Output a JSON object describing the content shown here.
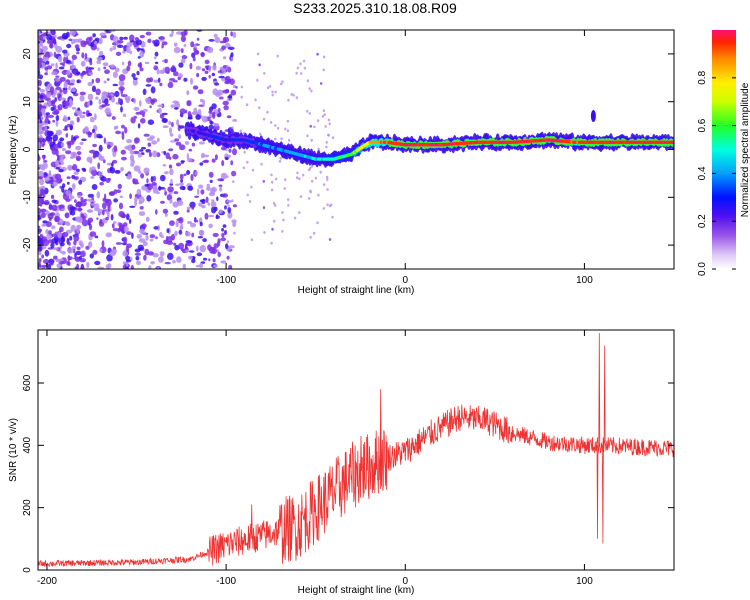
{
  "title": "S233.2025.310.18.08.R09",
  "colors": {
    "snr_line": "#ee3333",
    "axis": "#000000",
    "colormap": [
      "#e6e6fa",
      "#b48cf0",
      "#7a2ee8",
      "#3a10f0",
      "#0033ff",
      "#00aaff",
      "#00ffcc",
      "#33ff33",
      "#ccff00",
      "#ffee00",
      "#ff9900",
      "#ff3300",
      "#ff1177"
    ]
  },
  "chart_data": [
    {
      "type": "heatmap",
      "name": "spectrogram",
      "xlabel": "Height of straight line (km)",
      "ylabel": "Frequency (Hz)",
      "xlim": [
        -205,
        150
      ],
      "ylim": [
        -25,
        25
      ],
      "xticks": [
        -200,
        -100,
        0,
        100
      ],
      "xtick_labels": [
        "-200",
        "-100",
        "0",
        "100"
      ],
      "yticks": [
        -20,
        -10,
        0,
        10,
        20
      ],
      "ytick_labels": [
        "-20",
        "-10",
        "0",
        "10",
        "20"
      ],
      "colorbar": {
        "label": "Normalized spectral amplitude",
        "range": [
          0,
          1
        ],
        "ticks": [
          0.0,
          0.2,
          0.4,
          0.6,
          0.8
        ],
        "tick_labels": [
          "0.0",
          "0.2",
          "0.4",
          "0.6",
          "0.8"
        ]
      },
      "ridge": [
        {
          "x": -120,
          "f": 4,
          "a": 0.22
        },
        {
          "x": -110,
          "f": 3,
          "a": 0.28
        },
        {
          "x": -100,
          "f": 2,
          "a": 0.3
        },
        {
          "x": -90,
          "f": 2,
          "a": 0.32
        },
        {
          "x": -80,
          "f": 1,
          "a": 0.36
        },
        {
          "x": -70,
          "f": 0,
          "a": 0.4
        },
        {
          "x": -60,
          "f": -1,
          "a": 0.42
        },
        {
          "x": -50,
          "f": -2,
          "a": 0.46
        },
        {
          "x": -40,
          "f": -2,
          "a": 0.5
        },
        {
          "x": -30,
          "f": -1,
          "a": 0.6
        },
        {
          "x": -20,
          "f": 1.5,
          "a": 0.8
        },
        {
          "x": -10,
          "f": 1.5,
          "a": 0.9
        },
        {
          "x": 0,
          "f": 1,
          "a": 0.95
        },
        {
          "x": 20,
          "f": 1,
          "a": 0.95
        },
        {
          "x": 40,
          "f": 1.5,
          "a": 0.95
        },
        {
          "x": 60,
          "f": 1.5,
          "a": 0.95
        },
        {
          "x": 80,
          "f": 2,
          "a": 0.95
        },
        {
          "x": 95,
          "f": 1.5,
          "a": 0.9
        },
        {
          "x": 110,
          "f": 1.5,
          "a": 0.95
        },
        {
          "x": 130,
          "f": 1.5,
          "a": 0.95
        },
        {
          "x": 150,
          "f": 1.5,
          "a": 0.95
        }
      ]
    },
    {
      "type": "line",
      "name": "snr",
      "xlabel": "Height of straight line (km)",
      "ylabel": "SNR (10 * v/v)",
      "xlim": [
        -205,
        150
      ],
      "ylim": [
        0,
        770
      ],
      "xticks": [
        -200,
        -100,
        0,
        100
      ],
      "xtick_labels": [
        "-200",
        "-100",
        "0",
        "100"
      ],
      "yticks": [
        0,
        200,
        400,
        600
      ],
      "ytick_labels": [
        "0",
        "200",
        "400",
        "600"
      ],
      "trend": [
        {
          "x": -205,
          "y": 20
        },
        {
          "x": -150,
          "y": 25
        },
        {
          "x": -120,
          "y": 35
        },
        {
          "x": -100,
          "y": 80
        },
        {
          "x": -80,
          "y": 110
        },
        {
          "x": -60,
          "y": 140
        },
        {
          "x": -45,
          "y": 220
        },
        {
          "x": -30,
          "y": 300
        },
        {
          "x": -15,
          "y": 350
        },
        {
          "x": 0,
          "y": 380
        },
        {
          "x": 15,
          "y": 440
        },
        {
          "x": 30,
          "y": 490
        },
        {
          "x": 45,
          "y": 480
        },
        {
          "x": 60,
          "y": 440
        },
        {
          "x": 80,
          "y": 410
        },
        {
          "x": 100,
          "y": 400
        },
        {
          "x": 110,
          "y": 400
        },
        {
          "x": 130,
          "y": 395
        },
        {
          "x": 150,
          "y": 390
        }
      ],
      "spikes": [
        {
          "x": -86,
          "y": 210
        },
        {
          "x": -25,
          "y": 430
        },
        {
          "x": -14,
          "y": 580
        },
        {
          "x": 107,
          "y": 100
        },
        {
          "x": 108,
          "y": 760
        },
        {
          "x": 110,
          "y": 85
        },
        {
          "x": 111,
          "y": 720
        }
      ]
    }
  ]
}
